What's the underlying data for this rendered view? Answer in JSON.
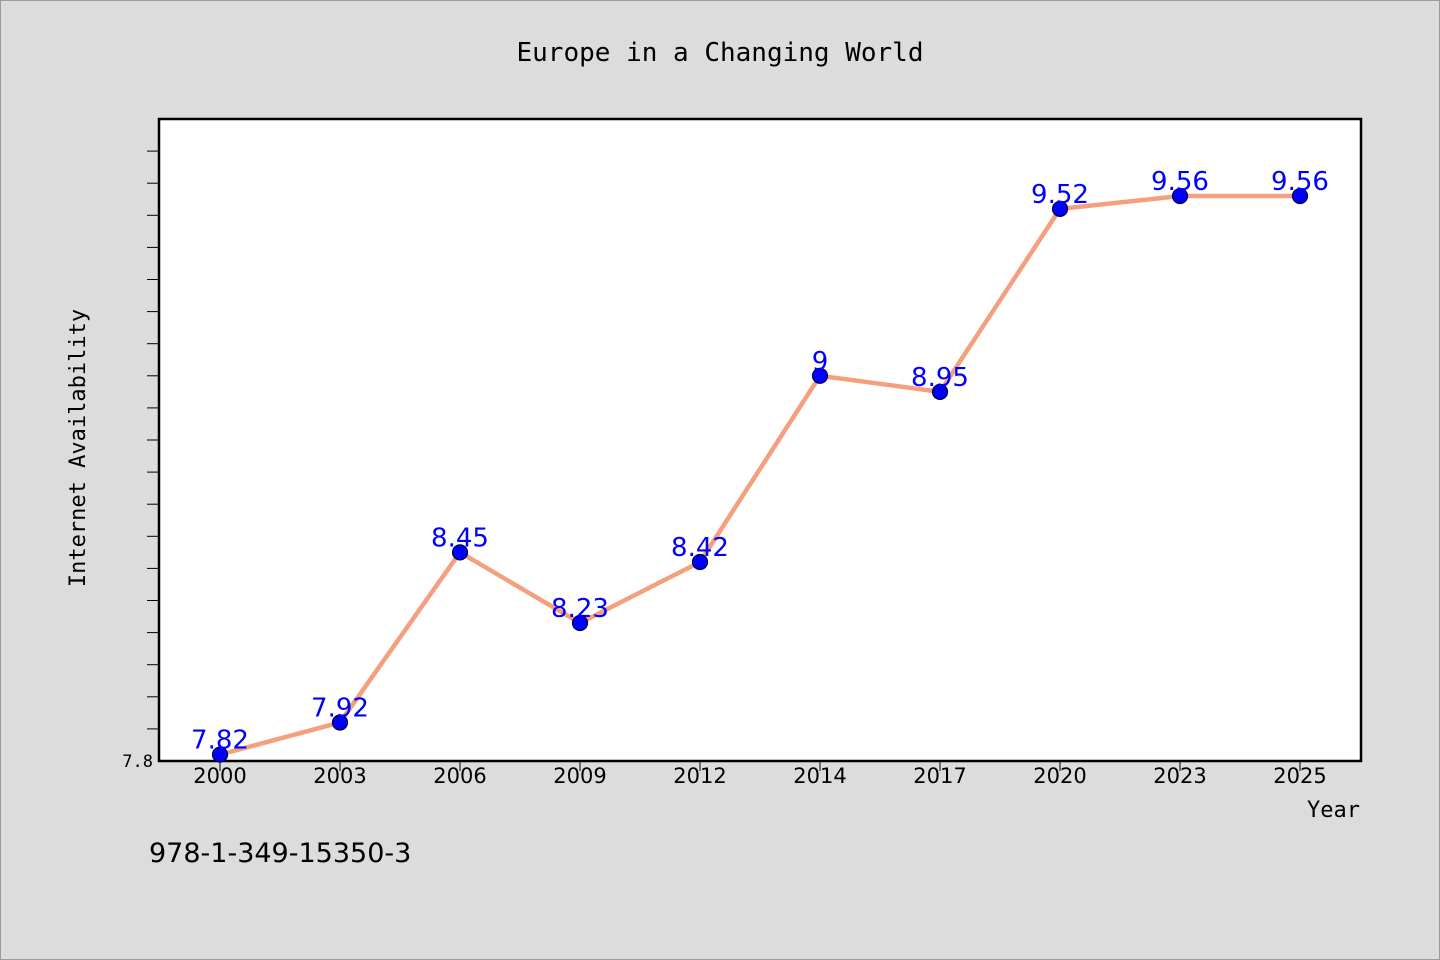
{
  "chart_data": {
    "type": "line",
    "title": "Europe in a Changing World",
    "xlabel": "Year",
    "ylabel": "Internet Availability",
    "categories": [
      "2000",
      "2003",
      "2006",
      "2009",
      "2012",
      "2014",
      "2017",
      "2020",
      "2023",
      "2025"
    ],
    "series": [
      {
        "values": [
          7.82,
          7.92,
          8.45,
          8.23,
          8.42,
          9,
          8.95,
          9.52,
          9.56,
          9.56
        ],
        "labels": [
          "7.82",
          "7.92",
          "8.45",
          "8.23",
          "8.42",
          "9",
          "8.95",
          "9.52",
          "9.56",
          "9.56"
        ]
      }
    ],
    "ylim": [
      7.8,
      9.8
    ],
    "yticks": [
      "7.8"
    ],
    "grid": false,
    "legend": "none",
    "colors": {
      "line": "#f4a07e",
      "marker": "#0000ff",
      "marker_edge": "#000033",
      "data_label": "#0000ff",
      "plot_bg": "#ffffff",
      "page_bg": "#dcdcdc"
    }
  },
  "footer": {
    "text": "978-1-349-15350-3"
  }
}
